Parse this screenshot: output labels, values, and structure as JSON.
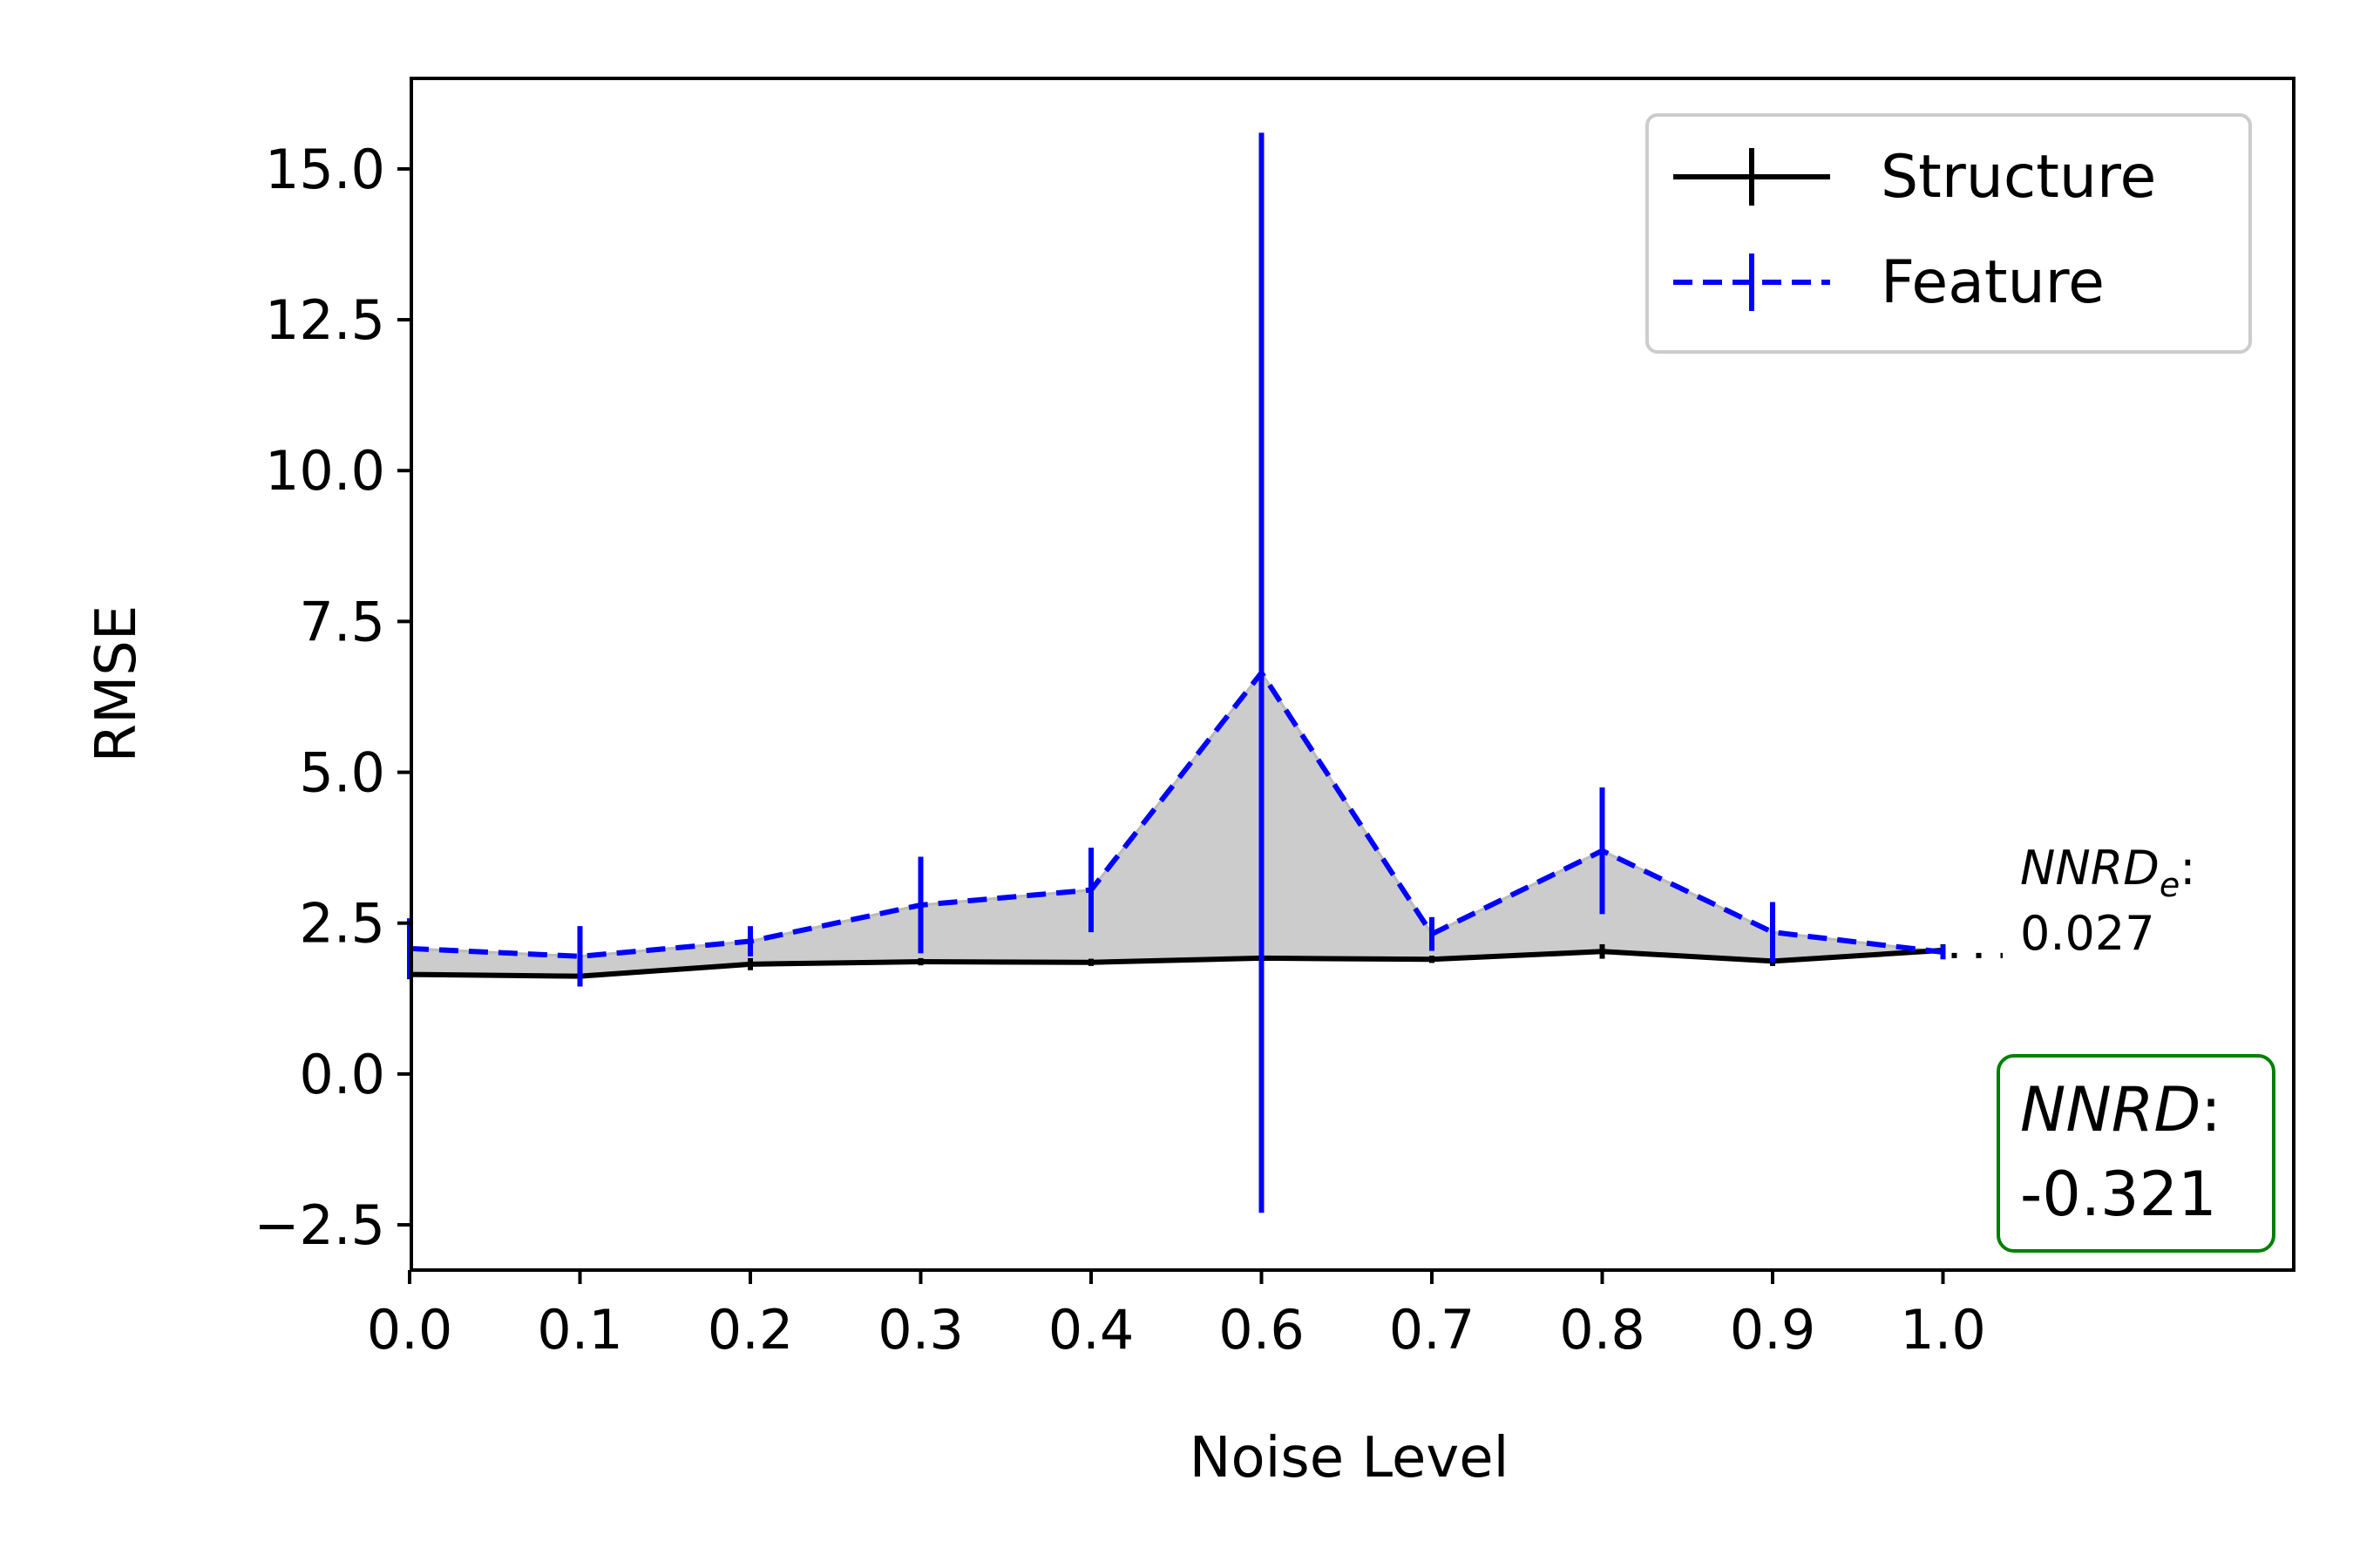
{
  "chart_data": {
    "type": "line",
    "xlabel": "Noise Level",
    "ylabel": "RMSE",
    "ylim": [
      -3.25,
      16.5
    ],
    "yticks": [
      -2.5,
      0.0,
      2.5,
      5.0,
      7.5,
      10.0,
      12.5,
      15.0
    ],
    "ytick_labels": [
      "−2.5",
      "0.0",
      "2.5",
      "5.0",
      "7.5",
      "10.0",
      "12.5",
      "15.0"
    ],
    "x_tick_labels": [
      "0.0",
      "0.1",
      "0.2",
      "0.3",
      "0.4",
      "0.6",
      "0.7",
      "0.8",
      "0.9",
      "1.0"
    ],
    "legend_position": "top-right",
    "series": [
      {
        "name": "Structure",
        "color": "#000000",
        "style": "solid",
        "values": [
          1.65,
          1.62,
          1.82,
          1.86,
          1.85,
          1.92,
          1.9,
          2.03,
          1.87,
          2.05
        ],
        "errors": [
          0.08,
          0.08,
          0.1,
          0.06,
          0.06,
          0.05,
          0.06,
          0.12,
          0.08,
          0.1
        ]
      },
      {
        "name": "Feature",
        "color": "#0000ff",
        "style": "dashed",
        "values": [
          2.08,
          1.95,
          2.2,
          2.8,
          3.05,
          6.65,
          2.32,
          3.7,
          2.35,
          2.02
        ],
        "errors": [
          0.5,
          0.5,
          0.25,
          0.8,
          0.7,
          8.95,
          0.28,
          1.05,
          0.5,
          0.12
        ]
      }
    ],
    "fill_between_color": "#cccccc",
    "annotations": {
      "nnrd_e_label": "NNRD",
      "nnrd_e_subscript": "e",
      "nnrd_e_value": "0.027",
      "nnrd_label": "NNRD",
      "nnrd_value": "-0.321",
      "nnrd_box_color": "#008000"
    }
  }
}
